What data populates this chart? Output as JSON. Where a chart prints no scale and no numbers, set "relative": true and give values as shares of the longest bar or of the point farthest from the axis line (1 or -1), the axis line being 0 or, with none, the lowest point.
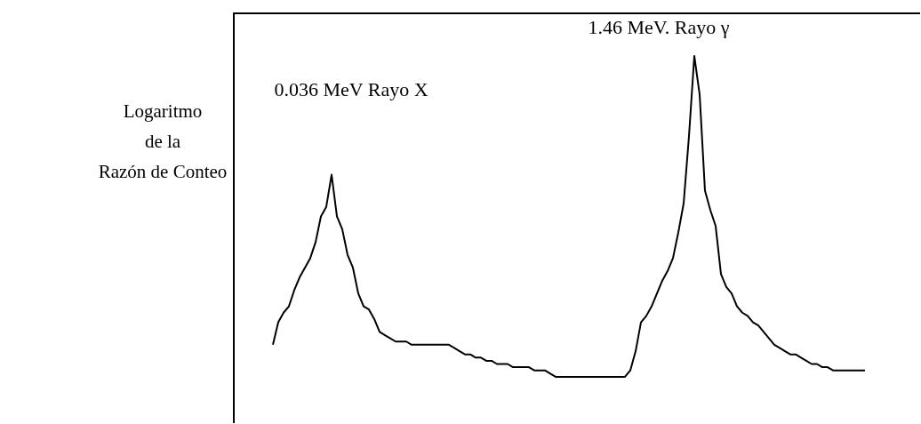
{
  "chart_data": {
    "type": "line",
    "relative": true,
    "ylabel": "Logaritmo\nde la\nRazón de Conteo",
    "legend": false,
    "marker": "none",
    "annotations": [
      "0.036 MeV Rayo X",
      "1.46 MeV. Rayo γ"
    ],
    "categories": [
      null,
      null,
      null,
      null,
      null,
      null,
      null,
      null,
      null,
      null,
      null,
      null,
      null,
      null,
      null,
      null,
      null,
      null,
      null,
      null,
      null,
      null,
      null,
      null,
      null,
      null,
      null,
      null,
      null,
      null,
      null,
      null,
      null,
      null,
      null,
      null,
      null,
      null,
      null,
      null,
      null,
      null,
      null,
      null,
      null,
      null,
      null,
      null,
      null,
      null,
      null,
      null,
      null,
      null,
      null,
      null,
      null,
      null,
      null,
      null,
      null,
      null,
      null,
      null,
      null,
      null,
      null,
      null,
      null,
      null,
      null,
      null,
      null,
      null,
      null,
      null,
      null,
      null,
      null,
      null,
      null,
      null,
      null,
      null,
      null,
      null,
      null,
      null,
      null,
      null,
      null,
      null,
      null,
      null,
      null,
      null,
      null,
      null,
      null,
      null,
      null,
      null,
      null,
      null,
      null,
      null,
      null,
      null,
      null,
      null,
      null,
      null
    ],
    "series": [
      {
        "color": "#000000",
        "values": [
          0.1,
          0.17,
          0.2,
          0.22,
          0.27,
          0.31,
          0.34,
          0.37,
          0.42,
          0.5,
          0.53,
          0.63,
          0.5,
          0.46,
          0.38,
          0.34,
          0.26,
          0.22,
          0.21,
          0.18,
          0.14,
          0.13,
          0.12,
          0.11,
          0.11,
          0.11,
          0.1,
          0.1,
          0.1,
          0.1,
          0.1,
          0.1,
          0.1,
          0.1,
          0.09,
          0.08,
          0.07,
          0.07,
          0.06,
          0.06,
          0.05,
          0.05,
          0.04,
          0.04,
          0.04,
          0.03,
          0.03,
          0.03,
          0.03,
          0.02,
          0.02,
          0.02,
          0.01,
          0,
          0,
          0,
          0,
          0,
          0,
          0,
          0,
          0,
          0,
          0,
          0,
          0,
          0,
          0.02,
          0.08,
          0.17,
          0.19,
          0.22,
          0.26,
          0.3,
          0.33,
          0.37,
          0.45,
          0.54,
          0.75,
          1,
          0.88,
          0.58,
          0.52,
          0.47,
          0.32,
          0.28,
          0.26,
          0.22,
          0.2,
          0.19,
          0.17,
          0.16,
          0.14,
          0.12,
          0.1,
          0.09,
          0.08,
          0.07,
          0.07,
          0.06,
          0.05,
          0.04,
          0.04,
          0.03,
          0.03,
          0.02,
          0.02,
          0.02,
          0.02,
          0.02,
          0.02,
          0.02
        ]
      }
    ]
  }
}
